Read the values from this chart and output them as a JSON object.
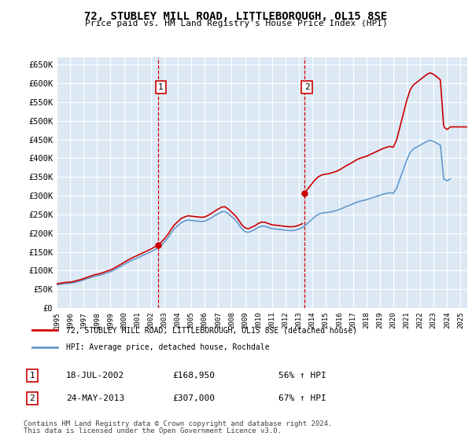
{
  "title": "72, STUBLEY MILL ROAD, LITTLEBOROUGH, OL15 8SE",
  "subtitle": "Price paid vs. HM Land Registry's House Price Index (HPI)",
  "ylabel_ticks": [
    "£0",
    "£50K",
    "£100K",
    "£150K",
    "£200K",
    "£250K",
    "£300K",
    "£350K",
    "£400K",
    "£450K",
    "£500K",
    "£550K",
    "£600K",
    "£650K"
  ],
  "ylim": [
    0,
    670000
  ],
  "xlim_start": 1995.0,
  "xlim_end": 2025.5,
  "background_color": "#dce9f5",
  "plot_bg": "#dce9f5",
  "grid_color": "#ffffff",
  "transaction1": {
    "date": 2002.54,
    "price": 168950,
    "label": "1"
  },
  "transaction2": {
    "date": 2013.39,
    "price": 307000,
    "label": "2"
  },
  "legend_line1": "72, STUBLEY MILL ROAD, LITTLEBOROUGH, OL15 8SE (detached house)",
  "legend_line2": "HPI: Average price, detached house, Rochdale",
  "footer1": "Contains HM Land Registry data © Crown copyright and database right 2024.",
  "footer2": "This data is licensed under the Open Government Licence v3.0.",
  "table": [
    {
      "num": "1",
      "date": "18-JUL-2002",
      "price": "£168,950",
      "change": "56% ↑ HPI"
    },
    {
      "num": "2",
      "date": "24-MAY-2013",
      "price": "£307,000",
      "change": "67% ↑ HPI"
    }
  ],
  "red_line_color": "#cc0000",
  "blue_line_color": "#6699cc",
  "hpi_years": [
    1995.0,
    1995.25,
    1995.5,
    1995.75,
    1996.0,
    1996.25,
    1996.5,
    1996.75,
    1997.0,
    1997.25,
    1997.5,
    1997.75,
    1998.0,
    1998.25,
    1998.5,
    1998.75,
    1999.0,
    1999.25,
    1999.5,
    1999.75,
    2000.0,
    2000.25,
    2000.5,
    2000.75,
    2001.0,
    2001.25,
    2001.5,
    2001.75,
    2002.0,
    2002.25,
    2002.5,
    2002.75,
    2003.0,
    2003.25,
    2003.5,
    2003.75,
    2004.0,
    2004.25,
    2004.5,
    2004.75,
    2005.0,
    2005.25,
    2005.5,
    2005.75,
    2006.0,
    2006.25,
    2006.5,
    2006.75,
    2007.0,
    2007.25,
    2007.5,
    2007.75,
    2008.0,
    2008.25,
    2008.5,
    2008.75,
    2009.0,
    2009.25,
    2009.5,
    2009.75,
    2010.0,
    2010.25,
    2010.5,
    2010.75,
    2011.0,
    2011.25,
    2011.5,
    2011.75,
    2012.0,
    2012.25,
    2012.5,
    2012.75,
    2013.0,
    2013.25,
    2013.5,
    2013.75,
    2014.0,
    2014.25,
    2014.5,
    2014.75,
    2015.0,
    2015.25,
    2015.5,
    2015.75,
    2016.0,
    2016.25,
    2016.5,
    2016.75,
    2017.0,
    2017.25,
    2017.5,
    2017.75,
    2018.0,
    2018.25,
    2018.5,
    2018.75,
    2019.0,
    2019.25,
    2019.5,
    2019.75,
    2020.0,
    2020.25,
    2020.5,
    2020.75,
    2021.0,
    2021.25,
    2021.5,
    2021.75,
    2022.0,
    2022.25,
    2022.5,
    2022.75,
    2023.0,
    2023.25,
    2023.5,
    2023.75,
    2024.0,
    2024.25
  ],
  "hpi_values": [
    62000,
    63000,
    64500,
    65500,
    66000,
    67500,
    70000,
    72000,
    75000,
    78000,
    81000,
    84000,
    86000,
    88000,
    91000,
    94000,
    97000,
    101000,
    106000,
    111000,
    116000,
    121000,
    126000,
    130000,
    134000,
    138000,
    142000,
    146000,
    150000,
    155000,
    160000,
    167000,
    176000,
    187000,
    200000,
    212000,
    220000,
    228000,
    232000,
    235000,
    234000,
    233000,
    232000,
    231000,
    232000,
    236000,
    241000,
    247000,
    252000,
    257000,
    258000,
    252000,
    244000,
    236000,
    225000,
    212000,
    204000,
    202000,
    206000,
    210000,
    216000,
    219000,
    218000,
    215000,
    212000,
    211000,
    210000,
    209000,
    208000,
    207000,
    207000,
    208000,
    211000,
    215000,
    222000,
    230000,
    238000,
    246000,
    251000,
    254000,
    255000,
    256000,
    258000,
    260000,
    263000,
    267000,
    271000,
    274000,
    278000,
    282000,
    285000,
    287000,
    289000,
    292000,
    295000,
    298000,
    301000,
    304000,
    306000,
    308000,
    306000,
    320000,
    345000,
    370000,
    395000,
    415000,
    425000,
    430000,
    435000,
    440000,
    445000,
    448000,
    445000,
    440000,
    435000,
    345000,
    340000,
    345000
  ],
  "property_years": [
    1995.0,
    1995.25,
    1995.5,
    1995.75,
    1996.0,
    1996.25,
    1996.5,
    1996.75,
    1997.0,
    1997.25,
    1997.5,
    1997.75,
    1998.0,
    1998.25,
    1998.5,
    1998.75,
    1999.0,
    1999.25,
    1999.5,
    1999.75,
    2000.0,
    2000.25,
    2000.5,
    2000.75,
    2001.0,
    2001.25,
    2001.5,
    2001.75,
    2002.0,
    2002.25,
    2002.5,
    2002.54,
    2002.75,
    2003.0,
    2003.25,
    2003.5,
    2003.75,
    2004.0,
    2004.25,
    2004.5,
    2004.75,
    2005.0,
    2005.25,
    2005.5,
    2005.75,
    2006.0,
    2006.25,
    2006.5,
    2006.75,
    2007.0,
    2007.25,
    2007.5,
    2007.75,
    2008.0,
    2008.25,
    2008.5,
    2008.75,
    2009.0,
    2009.25,
    2009.5,
    2009.75,
    2010.0,
    2010.25,
    2010.5,
    2010.75,
    2011.0,
    2011.25,
    2011.5,
    2011.75,
    2012.0,
    2012.25,
    2012.5,
    2012.75,
    2013.0,
    2013.25,
    2013.39,
    2013.5,
    2013.75,
    2014.0,
    2014.25,
    2014.5,
    2014.75,
    2015.0,
    2015.25,
    2015.5,
    2015.75,
    2016.0,
    2016.25,
    2016.5,
    2016.75,
    2017.0,
    2017.25,
    2017.5,
    2017.75,
    2018.0,
    2018.25,
    2018.5,
    2018.75,
    2019.0,
    2019.25,
    2019.5,
    2019.75,
    2020.0,
    2020.25,
    2020.5,
    2020.75,
    2021.0,
    2021.25,
    2021.5,
    2021.75,
    2022.0,
    2022.25,
    2022.5,
    2022.75,
    2023.0,
    2023.25,
    2023.5,
    2023.75,
    2024.0,
    2024.25
  ],
  "property_values_raw": [
    null,
    null,
    null,
    null,
    null,
    null,
    null,
    null,
    null,
    null,
    null,
    null,
    null,
    null,
    null,
    null,
    null,
    null,
    null,
    null,
    null,
    null,
    null,
    null,
    null,
    null,
    null,
    null,
    null,
    null,
    null,
    168950,
    null,
    null,
    null,
    null,
    null,
    null,
    null,
    null,
    null,
    null,
    null,
    null,
    null,
    null,
    null,
    null,
    null,
    null,
    null,
    null,
    null,
    null,
    null,
    null,
    null,
    null,
    null,
    null,
    null,
    null,
    null,
    null,
    null,
    null,
    null,
    null,
    null,
    null,
    null,
    null,
    null,
    null,
    null,
    307000,
    null,
    null,
    null,
    null,
    null,
    null,
    null,
    null,
    null,
    null,
    null,
    null,
    null,
    null,
    null,
    null,
    null,
    null,
    null,
    null,
    null,
    null,
    null,
    null,
    null,
    null,
    null,
    null,
    null,
    null,
    null,
    null,
    null,
    null,
    null,
    null,
    null,
    null,
    null,
    null,
    null,
    null
  ]
}
